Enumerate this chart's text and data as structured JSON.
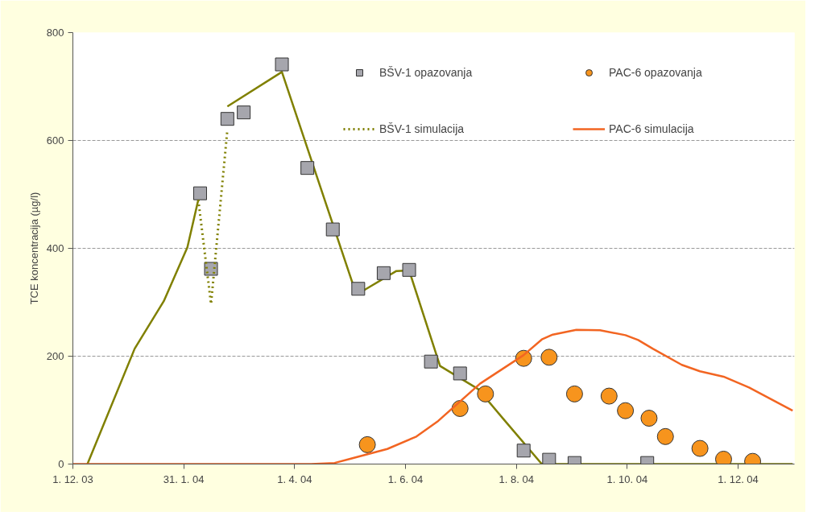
{
  "chart_data": {
    "type": "line",
    "ylabel": "TCE koncentracija (µg/l)",
    "xlim": [
      "2003-12-01",
      "2005-01-01"
    ],
    "ylim": [
      0,
      800
    ],
    "yticks": [
      0,
      200,
      400,
      600,
      800
    ],
    "xticks": [
      {
        "value": "2003-12-01",
        "label": "1. 12. 03"
      },
      {
        "value": "2004-01-31",
        "label": "31. 1. 04"
      },
      {
        "value": "2004-04-01",
        "label": "1. 4. 04"
      },
      {
        "value": "2004-06-01",
        "label": "1. 6. 04"
      },
      {
        "value": "2004-08-01",
        "label": "1. 8. 04"
      },
      {
        "value": "2004-10-01",
        "label": "1. 10. 04"
      },
      {
        "value": "2004-12-01",
        "label": "1. 12. 04"
      }
    ],
    "grid": "y",
    "legend": "top right",
    "series": [
      {
        "color": "#808000",
        "line_style": "solid",
        "x": [
          "2003-12-09",
          "2004-01-04",
          "2004-01-20",
          "2004-02-02",
          "2004-02-08",
          "2004-02-16",
          "2004-02-24",
          "2004-03-25",
          "2004-05-03",
          "2004-05-09",
          "2004-05-27",
          "2004-06-03",
          "2004-06-20",
          "2004-07-11",
          "2004-07-25",
          "2004-08-15",
          "2004-12-31"
        ],
        "values": [
          0,
          214,
          302,
          402,
          490,
          null,
          663,
          727,
          334,
          322,
          358,
          359,
          182,
          139,
          83,
          0,
          0
        ]
      },
      {
        "type": "scatter",
        "name": "BŠV-1 opazovanja",
        "color": "#a6a6ad",
        "marker": "square",
        "x": [
          "2004-02-09",
          "2004-02-15",
          "2004-02-24",
          "2004-03-04",
          "2004-03-25",
          "2004-04-08",
          "2004-04-22",
          "2004-05-06",
          "2004-05-20",
          "2004-06-03",
          "2004-06-15",
          "2004-07-01",
          "2004-08-05",
          "2004-08-19",
          "2004-09-02",
          "2004-10-12"
        ],
        "values": [
          502,
          362,
          640,
          652,
          741,
          549,
          435,
          325,
          354,
          360,
          190,
          168,
          25,
          8,
          2,
          2
        ]
      },
      {
        "name": "BŠV-1 simulacija",
        "color": "#808000",
        "line_style": "dotted",
        "x": [
          "2004-02-08",
          "2004-02-15",
          "2004-02-24"
        ],
        "values": [
          490,
          297,
          620
        ]
      },
      {
        "type": "scatter",
        "name": "PAC-6 opazovanja",
        "color": "#f7941d",
        "marker": "circle",
        "x": [
          "2004-05-11",
          "2004-07-01",
          "2004-07-15",
          "2004-08-05",
          "2004-08-19",
          "2004-09-02",
          "2004-09-21",
          "2004-09-30",
          "2004-10-13",
          "2004-10-22",
          "2004-11-10",
          "2004-11-23",
          "2004-12-09"
        ],
        "values": [
          36,
          103,
          130,
          196,
          198,
          130,
          126,
          99,
          85,
          51,
          29,
          9,
          5
        ]
      },
      {
        "name": "PAC-6 simulacija",
        "color": "#f26522",
        "line_style": "solid",
        "x": [
          "2003-12-01",
          "2004-04-10",
          "2004-04-23",
          "2004-05-02",
          "2004-05-22",
          "2004-06-07",
          "2004-06-19",
          "2004-07-12",
          "2004-08-05",
          "2004-08-15",
          "2004-08-21",
          "2004-09-03",
          "2004-09-16",
          "2004-09-30",
          "2004-10-07",
          "2004-10-15",
          "2004-10-31",
          "2004-11-10",
          "2004-11-23",
          "2004-12-07",
          "2004-12-31"
        ],
        "values": [
          0,
          0,
          2,
          10,
          28,
          51,
          80,
          149,
          202,
          231,
          240,
          249,
          248,
          239,
          230,
          214,
          184,
          172,
          162,
          142,
          99
        ]
      }
    ]
  }
}
